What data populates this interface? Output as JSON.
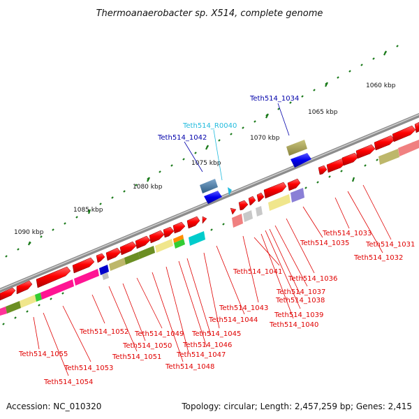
{
  "title": "Thermoanaerobacter sp. X514, complete genome",
  "footer": {
    "accession": "Accession: NC_010320",
    "stats": "Topology: circular; Length: 2,457,259 bp; Genes: 2,415"
  },
  "colors": {
    "backbone": "#8c8c8c",
    "gene_label": "#e00000",
    "locus_blue": "#0000aa",
    "rna_label": "#22bbdd",
    "tick": "#1a7a1a"
  },
  "scale_labels": [
    "1060 kbp",
    "1065 kbp",
    "1070 kbp",
    "1075 kbp",
    "1080 kbp",
    "1085 kbp",
    "1090 kbp"
  ],
  "gene_labels": [
    "Teth514_1031",
    "Teth514_1032",
    "Teth514_1033",
    "Teth514_1034",
    "Teth514_1035",
    "Teth514_1036",
    "Teth514_1037",
    "Teth514_1038",
    "Teth514_1039",
    "Teth514_1040",
    "Teth514_1041",
    "Teth514_1042",
    "Teth514_1043",
    "Teth514_1044",
    "Teth514_1045",
    "Teth514_1046",
    "Teth514_1047",
    "Teth514_1048",
    "Teth514_1049",
    "Teth514_1050",
    "Teth514_1051",
    "Teth514_1052",
    "Teth514_1053",
    "Teth514_1054",
    "Teth514_1055",
    "Teth514_R0040"
  ]
}
